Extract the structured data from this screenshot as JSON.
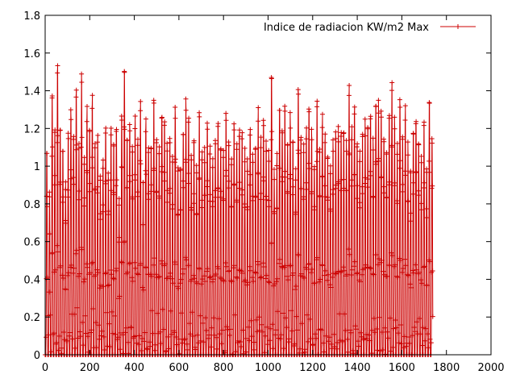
{
  "chart_data": {
    "type": "line",
    "title": "",
    "xlabel": "",
    "ylabel": "",
    "xlim": [
      0,
      2000
    ],
    "ylim": [
      0,
      1.8
    ],
    "xticks": [
      0,
      200,
      400,
      600,
      800,
      1000,
      1200,
      1400,
      1600,
      1800,
      2000
    ],
    "yticks": [
      0,
      0.2,
      0.4,
      0.6,
      0.8,
      1,
      1.2,
      1.4,
      1.6,
      1.8
    ],
    "xtick_labels": [
      "0",
      "200",
      "400",
      "600",
      "800",
      "1000",
      "1200",
      "1400",
      "1600",
      "1800",
      "2000"
    ],
    "ytick_labels": [
      "0",
      "0.2",
      "0.4",
      "0.6",
      "0.8",
      "1",
      "1.2",
      "1.4",
      "1.6",
      "1.8"
    ],
    "grid": false,
    "legend_position": "top-right",
    "series": [
      {
        "name": "Indice de radiacion KW/m2 Max",
        "color": "#cc0000",
        "marker": "plus",
        "daily_peaks": [
          1.13,
          0.92,
          1.49,
          1.28,
          1.6,
          1.29,
          1.18,
          0.98,
          1.22,
          1.34,
          1.27,
          1.53,
          1.2,
          1.59,
          1.12,
          1.37,
          1.25,
          1.42,
          1.2,
          1.25,
          1.01,
          1.07,
          1.24,
          1.03,
          1.25,
          1.17,
          1.3,
          0.87,
          1.38,
          1.65,
          1.22,
          1.33,
          1.14,
          1.34,
          1.18,
          1.4,
          1.0,
          1.32,
          1.18,
          1.22,
          1.4,
          1.21,
          1.18,
          1.36,
          1.33,
          1.18,
          1.21,
          1.12,
          1.4,
          1.04,
          1.09,
          1.26,
          1.45,
          1.31,
          1.1,
          1.17,
          1.06,
          1.33,
          1.11,
          1.14,
          1.27,
          1.15,
          1.1,
          1.21,
          1.28,
          1.18,
          1.12,
          1.35,
          1.24,
          1.08,
          1.31,
          1.18,
          1.27,
          1.22,
          1.14,
          1.08,
          1.3,
          1.14,
          1.22,
          1.38,
          1.2,
          1.33,
          1.17,
          1.13,
          1.62,
          1.04,
          1.12,
          1.43,
          1.31,
          1.37,
          1.17,
          1.33,
          1.2,
          1.02,
          1.5,
          1.22,
          1.16,
          1.28,
          1.38,
          1.24,
          1.07,
          1.46,
          1.14,
          1.33,
          1.22,
          1.16,
          1.05,
          1.18,
          1.23,
          1.26,
          1.25,
          1.27,
          1.18,
          1.53,
          1.25,
          1.38,
          1.21,
          1.12,
          1.24,
          1.3,
          1.27,
          1.33,
          1.2,
          1.47,
          1.41,
          1.37,
          1.21,
          1.18,
          1.31,
          1.5,
          1.3,
          1.16,
          1.43,
          1.25,
          1.38,
          1.18,
          1.02,
          1.24,
          1.33,
          1.2,
          1.1,
          1.29,
          1.06,
          1.4,
          1.22
        ]
      }
    ]
  }
}
